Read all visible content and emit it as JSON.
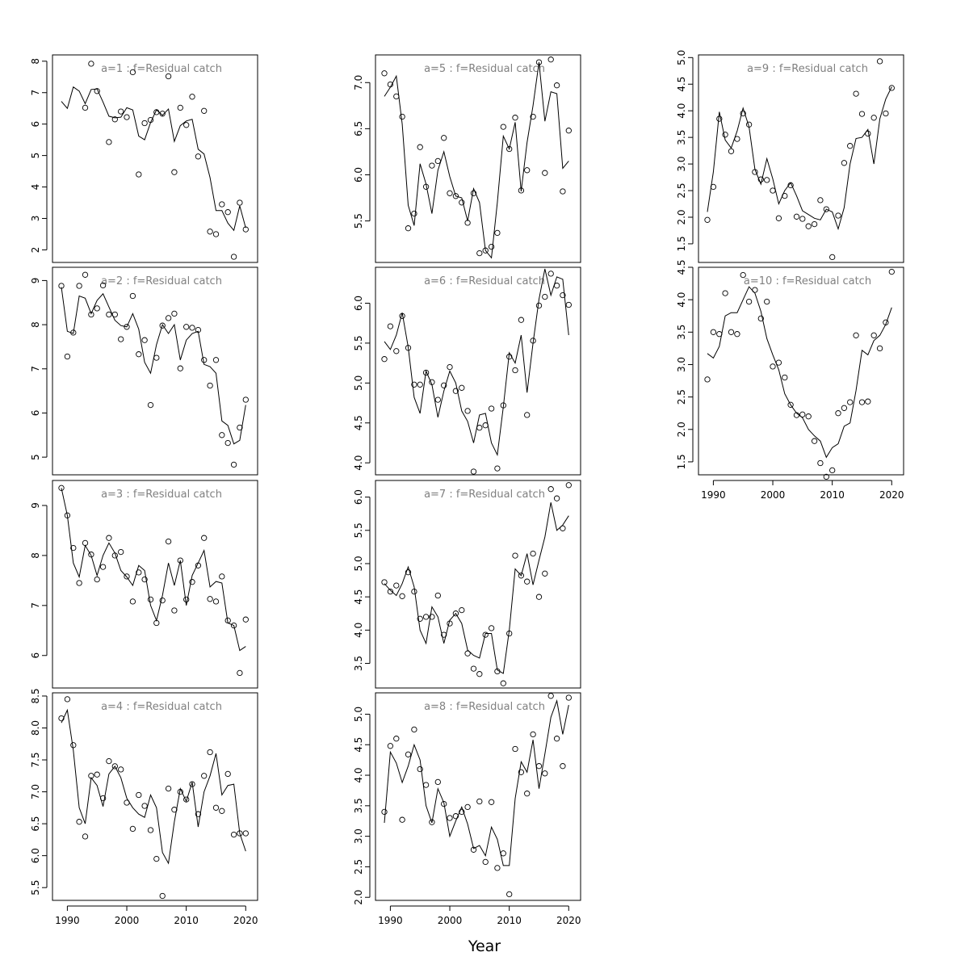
{
  "chart_data": {
    "type": "line",
    "xlabel": "Year",
    "x": [
      1989,
      1990,
      1991,
      1992,
      1993,
      1994,
      1995,
      1996,
      1997,
      1998,
      1999,
      2000,
      2001,
      2002,
      2003,
      2004,
      2005,
      2006,
      2007,
      2008,
      2009,
      2010,
      2011,
      2012,
      2013,
      2014,
      2015,
      2016,
      2017,
      2018,
      2019,
      2020
    ],
    "xticks": [
      1990,
      2000,
      2010,
      2020
    ],
    "xlim": [
      1987.5,
      2022
    ],
    "panels": [
      {
        "title": "a=1  :  f=Residual catch",
        "ylim": [
          1.6,
          8.2
        ],
        "yticks": [
          2,
          3,
          4,
          5,
          6,
          7,
          8
        ],
        "fitted": [
          6.72,
          6.5,
          7.18,
          7.05,
          6.65,
          7.1,
          7.12,
          6.7,
          6.25,
          6.2,
          6.22,
          6.52,
          6.45,
          5.62,
          5.5,
          6.05,
          6.45,
          6.28,
          6.48,
          5.45,
          5.95,
          6.1,
          6.15,
          5.2,
          5.05,
          4.3,
          3.25,
          3.25,
          2.85,
          2.62,
          3.4,
          2.7
        ],
        "observed": [
          null,
          null,
          null,
          null,
          6.52,
          7.92,
          7.05,
          null,
          5.43,
          6.15,
          6.4,
          6.22,
          7.65,
          4.4,
          6.03,
          6.13,
          6.38,
          6.33,
          7.52,
          4.47,
          6.52,
          5.97,
          6.87,
          4.97,
          6.42,
          2.58,
          2.5,
          3.45,
          3.2,
          1.78,
          3.5,
          2.65
        ]
      },
      {
        "title": "a=2  :  f=Residual catch",
        "ylim": [
          4.6,
          9.3
        ],
        "yticks": [
          5,
          6,
          7,
          8,
          9
        ],
        "fitted": [
          8.85,
          7.85,
          7.8,
          8.65,
          8.6,
          8.25,
          8.55,
          8.7,
          8.4,
          8.1,
          7.98,
          7.95,
          8.25,
          7.9,
          7.15,
          6.9,
          7.55,
          8.0,
          7.8,
          8.0,
          7.2,
          7.65,
          7.8,
          7.85,
          7.1,
          7.05,
          6.9,
          5.82,
          5.72,
          5.3,
          5.38,
          6.18
        ],
        "observed": [
          8.88,
          7.28,
          7.82,
          8.88,
          9.13,
          8.23,
          8.37,
          8.89,
          8.23,
          8.23,
          7.67,
          7.95,
          8.65,
          7.33,
          7.65,
          6.18,
          7.25,
          7.98,
          8.15,
          8.25,
          7.01,
          7.95,
          7.93,
          7.88,
          7.2,
          6.62,
          7.2,
          5.5,
          5.32,
          4.83,
          5.67,
          6.3
        ]
      },
      {
        "title": "a=3  :  f=Residual catch",
        "ylim": [
          5.35,
          9.5
        ],
        "yticks": [
          6,
          7,
          8,
          9
        ],
        "fitted": [
          9.35,
          8.8,
          7.85,
          7.57,
          8.2,
          8.0,
          7.6,
          8.0,
          8.25,
          8.05,
          7.7,
          7.57,
          7.4,
          7.8,
          7.7,
          7.0,
          6.7,
          7.2,
          7.85,
          7.4,
          7.9,
          7.0,
          7.6,
          7.85,
          8.1,
          7.37,
          7.48,
          7.45,
          6.65,
          6.6,
          6.1,
          6.18
        ],
        "observed": [
          9.35,
          8.8,
          8.15,
          7.45,
          8.25,
          8.02,
          7.52,
          7.77,
          8.35,
          8.0,
          8.07,
          7.58,
          7.08,
          7.66,
          7.52,
          7.12,
          6.65,
          7.1,
          8.28,
          6.9,
          7.9,
          7.12,
          7.47,
          7.8,
          8.35,
          7.13,
          7.08,
          7.58,
          6.7,
          6.6,
          5.65,
          6.72
        ]
      },
      {
        "title": "a=4  :  f=Residual catch",
        "ylim": [
          5.3,
          8.55
        ],
        "yticks": [
          5.5,
          6.0,
          6.5,
          7.0,
          7.5,
          8.0,
          8.5
        ],
        "fitted": [
          8.08,
          8.28,
          7.65,
          6.75,
          6.5,
          7.22,
          7.1,
          6.77,
          7.28,
          7.4,
          7.22,
          6.9,
          6.75,
          6.65,
          6.6,
          6.95,
          6.75,
          6.05,
          5.88,
          6.53,
          7.05,
          6.85,
          7.15,
          6.45,
          7.0,
          7.25,
          7.6,
          6.95,
          7.1,
          7.12,
          6.35,
          6.07
        ],
        "observed": [
          8.15,
          8.45,
          7.73,
          6.53,
          6.3,
          7.25,
          7.27,
          6.9,
          7.48,
          7.4,
          7.35,
          6.83,
          6.42,
          6.95,
          6.78,
          6.4,
          5.95,
          5.37,
          7.05,
          6.72,
          7.0,
          6.88,
          7.12,
          6.65,
          7.25,
          7.62,
          6.75,
          6.7,
          7.28,
          6.33,
          6.35,
          6.35
        ]
      },
      {
        "title": "a=5  :  f=Residual catch",
        "ylim": [
          5.05,
          7.3
        ],
        "yticks": [
          5.5,
          6.0,
          6.5,
          7.0
        ],
        "fitted": [
          6.85,
          6.95,
          7.07,
          6.55,
          5.67,
          5.45,
          6.12,
          5.9,
          5.58,
          6.05,
          6.25,
          5.98,
          5.77,
          5.75,
          5.5,
          5.85,
          5.7,
          5.18,
          5.1,
          5.7,
          6.42,
          6.28,
          6.57,
          5.82,
          6.35,
          6.75,
          7.22,
          6.58,
          6.9,
          6.88,
          6.07,
          6.15
        ],
        "observed": [
          7.1,
          6.98,
          6.85,
          6.63,
          5.42,
          5.58,
          6.3,
          5.87,
          6.1,
          6.15,
          6.4,
          5.8,
          5.77,
          5.7,
          5.48,
          5.8,
          5.15,
          5.18,
          5.22,
          5.37,
          6.52,
          6.28,
          6.62,
          5.83,
          6.05,
          6.63,
          7.22,
          6.02,
          7.25,
          6.97,
          5.82,
          6.48
        ]
      },
      {
        "title": "a=6  :  f=Residual catch",
        "ylim": [
          3.85,
          6.45
        ],
        "yticks": [
          4.0,
          4.5,
          5.0,
          5.5,
          6.0
        ],
        "fitted": [
          5.52,
          5.42,
          5.6,
          5.88,
          5.45,
          4.82,
          4.62,
          5.15,
          4.98,
          4.57,
          4.9,
          5.15,
          5.0,
          4.65,
          4.52,
          4.25,
          4.6,
          4.62,
          4.25,
          4.1,
          4.7,
          5.38,
          5.25,
          5.6,
          4.88,
          5.5,
          6.05,
          6.43,
          6.1,
          6.33,
          6.3,
          5.6
        ],
        "observed": [
          5.3,
          5.71,
          5.4,
          5.84,
          5.44,
          4.98,
          4.98,
          5.13,
          5.01,
          4.79,
          4.97,
          5.2,
          4.9,
          4.94,
          4.65,
          3.89,
          4.44,
          4.47,
          4.68,
          3.93,
          4.72,
          5.33,
          5.16,
          5.79,
          4.6,
          5.53,
          5.97,
          6.08,
          6.37,
          6.22,
          6.1,
          5.98
        ]
      },
      {
        "title": "a=7  :  f=Residual catch",
        "ylim": [
          3.13,
          6.25
        ],
        "yticks": [
          3.5,
          4.0,
          4.5,
          5.0,
          5.5,
          6.0
        ],
        "fitted": [
          4.7,
          4.6,
          4.52,
          4.7,
          4.95,
          4.65,
          4.0,
          3.8,
          4.35,
          4.2,
          3.8,
          4.15,
          4.25,
          4.1,
          3.7,
          3.62,
          3.58,
          3.95,
          3.95,
          3.4,
          3.35,
          4.0,
          4.92,
          4.82,
          5.15,
          4.68,
          5.05,
          5.4,
          5.92,
          5.5,
          5.58,
          5.72
        ],
        "observed": [
          4.72,
          4.58,
          4.67,
          4.51,
          4.87,
          4.58,
          4.17,
          4.2,
          4.2,
          4.52,
          3.93,
          4.1,
          4.25,
          4.3,
          3.65,
          3.42,
          3.34,
          3.93,
          4.03,
          3.38,
          3.2,
          3.95,
          5.12,
          4.82,
          4.73,
          5.15,
          4.5,
          4.85,
          6.12,
          5.98,
          5.53,
          6.18
        ]
      },
      {
        "title": "a=8  :  f=Residual catch",
        "ylim": [
          1.95,
          5.35
        ],
        "yticks": [
          2.0,
          2.5,
          3.0,
          3.5,
          4.0,
          4.5,
          5.0
        ],
        "fitted": [
          3.22,
          4.38,
          4.2,
          3.88,
          4.15,
          4.5,
          4.25,
          3.5,
          3.22,
          3.78,
          3.55,
          3.0,
          3.25,
          3.48,
          3.2,
          2.8,
          2.85,
          2.68,
          3.15,
          2.95,
          2.52,
          2.52,
          3.62,
          4.22,
          4.05,
          4.58,
          3.78,
          4.35,
          4.95,
          5.22,
          4.67,
          5.15
        ],
        "observed": [
          3.4,
          4.48,
          4.6,
          3.27,
          4.34,
          4.75,
          4.1,
          3.84,
          3.23,
          3.89,
          3.53,
          3.3,
          3.33,
          3.4,
          3.48,
          2.78,
          3.57,
          2.58,
          3.56,
          2.48,
          2.72,
          2.05,
          4.43,
          4.05,
          3.7,
          4.67,
          4.15,
          4.03,
          5.3,
          4.6,
          4.15,
          5.27
        ]
      },
      {
        "title": "a=9  :  f=Residual catch",
        "ylim": [
          1.15,
          5.05
        ],
        "yticks": [
          1.5,
          2.0,
          2.5,
          3.0,
          3.5,
          4.0,
          4.5,
          5.0
        ],
        "fitted": [
          2.1,
          2.85,
          3.98,
          3.45,
          3.3,
          3.62,
          4.05,
          3.7,
          2.9,
          2.62,
          3.1,
          2.72,
          2.25,
          2.5,
          2.65,
          2.4,
          2.12,
          2.05,
          1.98,
          1.95,
          2.15,
          2.1,
          1.78,
          2.18,
          3.0,
          3.48,
          3.5,
          3.65,
          3.0,
          3.85,
          4.22,
          4.45
        ],
        "observed": [
          1.95,
          2.57,
          3.85,
          3.55,
          3.24,
          3.47,
          3.95,
          3.74,
          2.85,
          2.71,
          2.7,
          2.5,
          1.98,
          2.4,
          2.6,
          2.01,
          1.97,
          1.83,
          1.87,
          2.32,
          2.15,
          1.25,
          2.03,
          3.02,
          3.34,
          4.32,
          3.94,
          3.57,
          3.87,
          4.93,
          3.95,
          4.43
        ]
      },
      {
        "title": "a=10  :  f=Residual catch",
        "ylim": [
          1.3,
          4.5
        ],
        "yticks": [
          1.5,
          2.0,
          2.5,
          3.0,
          3.5,
          4.0,
          4.5
        ],
        "fitted": [
          3.17,
          3.1,
          3.28,
          3.75,
          3.8,
          3.8,
          4.0,
          4.2,
          4.1,
          3.82,
          3.4,
          3.15,
          2.92,
          2.55,
          2.38,
          2.25,
          2.18,
          2.0,
          1.9,
          1.82,
          1.57,
          1.72,
          1.78,
          2.05,
          2.1,
          2.6,
          3.22,
          3.15,
          3.37,
          3.45,
          3.62,
          3.88
        ],
        "observed": [
          2.77,
          3.5,
          3.47,
          4.1,
          3.5,
          3.47,
          4.38,
          3.97,
          4.15,
          3.71,
          3.97,
          2.97,
          3.03,
          2.8,
          2.38,
          2.22,
          2.23,
          2.2,
          1.82,
          1.48,
          1.27,
          1.37,
          2.25,
          2.33,
          2.42,
          3.45,
          2.42,
          2.43,
          3.45,
          3.25,
          3.65,
          4.43
        ]
      }
    ]
  }
}
